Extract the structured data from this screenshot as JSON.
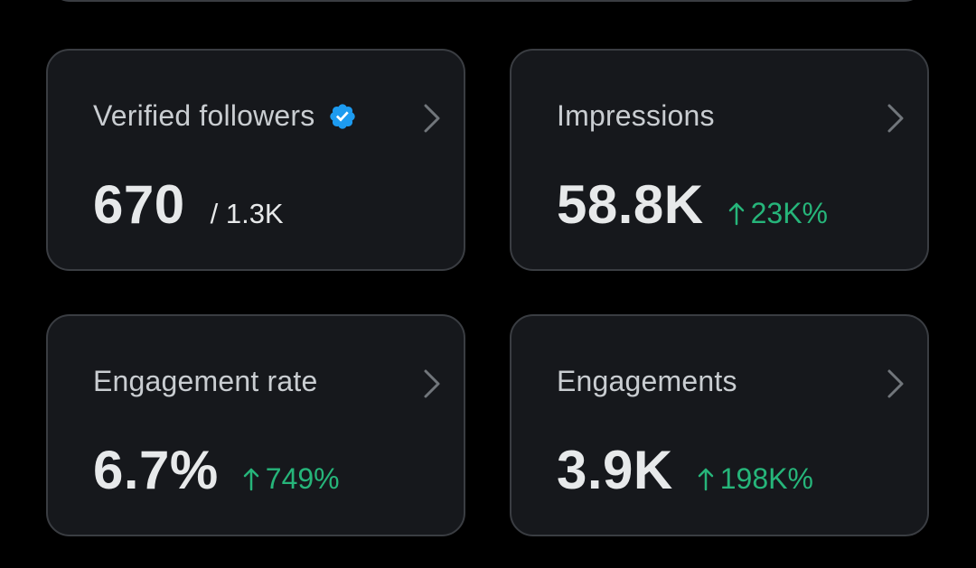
{
  "colors": {
    "background": "#000000",
    "card_background": "#16181c",
    "card_border": "#3a3d42",
    "title_text": "#c9cdd1",
    "value_text": "#e7e9ea",
    "positive_change": "#26b57a",
    "verified_blue": "#1d9bf0"
  },
  "cards": [
    {
      "title": "Verified followers",
      "title_icon": "verified-badge-icon",
      "value": "670",
      "sub_value": "/ 1.3K",
      "action_icon": "chevron-right-icon"
    },
    {
      "title": "Impressions",
      "value": "58.8K",
      "change": "23K%",
      "change_icon": "arrow-up-icon",
      "action_icon": "chevron-right-icon"
    },
    {
      "title": "Engagement rate",
      "value": "6.7%",
      "change": "749%",
      "change_icon": "arrow-up-icon",
      "action_icon": "chevron-right-icon"
    },
    {
      "title": "Engagements",
      "value": "3.9K",
      "change": "198K%",
      "change_icon": "arrow-up-icon",
      "action_icon": "chevron-right-icon"
    }
  ]
}
